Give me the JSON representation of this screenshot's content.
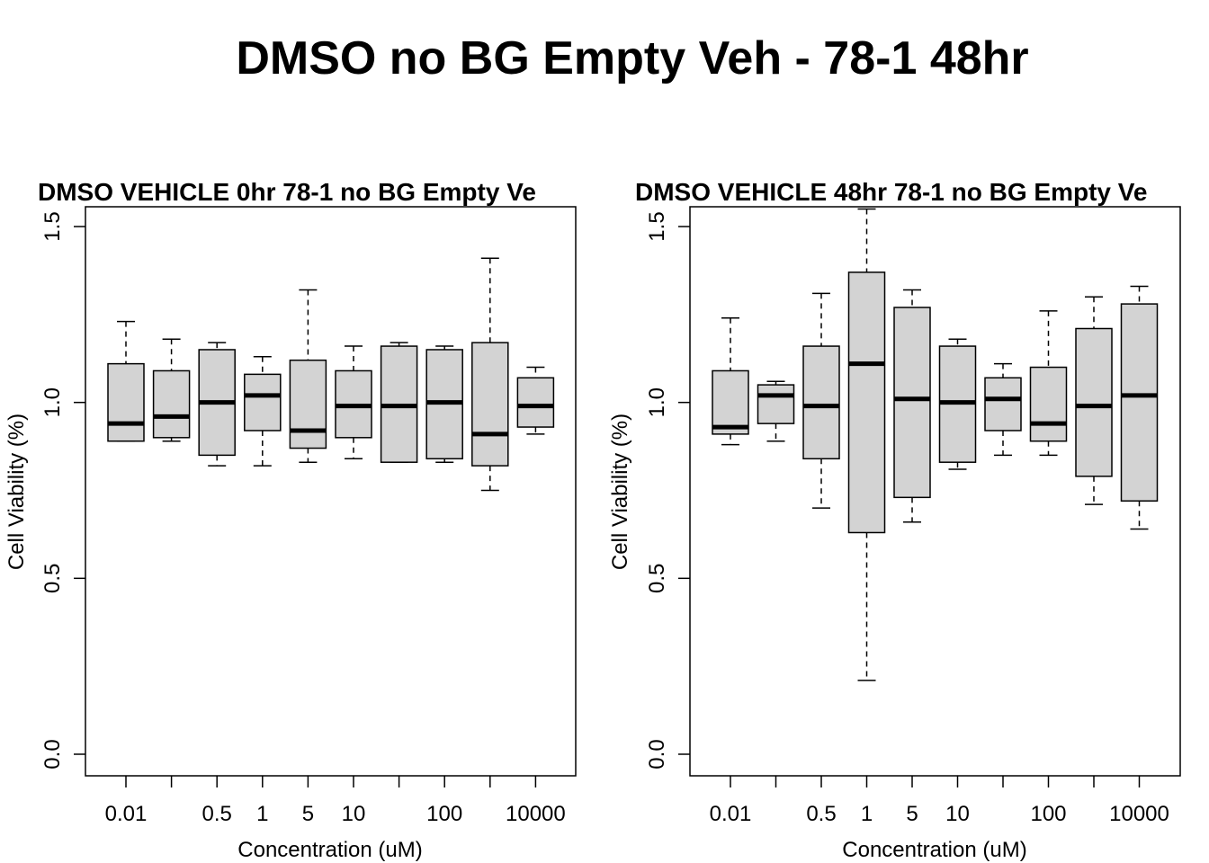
{
  "figure": {
    "title": "DMSO no BG Empty Veh - 78-1 48hr"
  },
  "chart_data": [
    {
      "type": "boxplot",
      "title": "DMSO VEHICLE 0hr 78-1 no BG Empty Ve",
      "xlabel": "Concentration (uM)",
      "ylabel": "Cell Viability (%)",
      "ylim": [
        0,
        1.5
      ],
      "yticks": [
        "0.0",
        "0.5",
        "1.0",
        "1.5"
      ],
      "categories": [
        "0.01",
        "",
        "0.5",
        "1",
        "5",
        "10",
        "",
        "100",
        "",
        "10000"
      ],
      "boxes": [
        {
          "whisker_low": 0.89,
          "q1": 0.89,
          "median": 0.94,
          "q3": 1.11,
          "whisker_high": 1.23
        },
        {
          "whisker_low": 0.89,
          "q1": 0.9,
          "median": 0.96,
          "q3": 1.09,
          "whisker_high": 1.18
        },
        {
          "whisker_low": 0.82,
          "q1": 0.85,
          "median": 1.0,
          "q3": 1.15,
          "whisker_high": 1.17
        },
        {
          "whisker_low": 0.82,
          "q1": 0.92,
          "median": 1.02,
          "q3": 1.08,
          "whisker_high": 1.13
        },
        {
          "whisker_low": 0.83,
          "q1": 0.87,
          "median": 0.92,
          "q3": 1.12,
          "whisker_high": 1.32
        },
        {
          "whisker_low": 0.84,
          "q1": 0.9,
          "median": 0.99,
          "q3": 1.09,
          "whisker_high": 1.16
        },
        {
          "whisker_low": 0.83,
          "q1": 0.83,
          "median": 0.99,
          "q3": 1.16,
          "whisker_high": 1.17
        },
        {
          "whisker_low": 0.83,
          "q1": 0.84,
          "median": 1.0,
          "q3": 1.15,
          "whisker_high": 1.16
        },
        {
          "whisker_low": 0.75,
          "q1": 0.82,
          "median": 0.91,
          "q3": 1.17,
          "whisker_high": 1.41
        },
        {
          "whisker_low": 0.91,
          "q1": 0.93,
          "median": 0.99,
          "q3": 1.07,
          "whisker_high": 1.1
        }
      ]
    },
    {
      "type": "boxplot",
      "title": "DMSO VEHICLE 48hr 78-1 no BG Empty Ve",
      "xlabel": "Concentration (uM)",
      "ylabel": "Cell Viability (%)",
      "ylim": [
        0,
        1.5
      ],
      "yticks": [
        "0.0",
        "0.5",
        "1.0",
        "1.5"
      ],
      "categories": [
        "0.01",
        "",
        "0.5",
        "1",
        "5",
        "10",
        "",
        "100",
        "",
        "10000"
      ],
      "boxes": [
        {
          "whisker_low": 0.88,
          "q1": 0.91,
          "median": 0.93,
          "q3": 1.09,
          "whisker_high": 1.24
        },
        {
          "whisker_low": 0.89,
          "q1": 0.94,
          "median": 1.02,
          "q3": 1.05,
          "whisker_high": 1.06
        },
        {
          "whisker_low": 0.7,
          "q1": 0.84,
          "median": 0.99,
          "q3": 1.16,
          "whisker_high": 1.31
        },
        {
          "whisker_low": 0.21,
          "q1": 0.63,
          "median": 1.11,
          "q3": 1.37,
          "whisker_high": 1.55
        },
        {
          "whisker_low": 0.66,
          "q1": 0.73,
          "median": 1.01,
          "q3": 1.27,
          "whisker_high": 1.32
        },
        {
          "whisker_low": 0.81,
          "q1": 0.83,
          "median": 1.0,
          "q3": 1.16,
          "whisker_high": 1.18
        },
        {
          "whisker_low": 0.85,
          "q1": 0.92,
          "median": 1.01,
          "q3": 1.07,
          "whisker_high": 1.11
        },
        {
          "whisker_low": 0.85,
          "q1": 0.89,
          "median": 0.94,
          "q3": 1.1,
          "whisker_high": 1.26
        },
        {
          "whisker_low": 0.71,
          "q1": 0.79,
          "median": 0.99,
          "q3": 1.21,
          "whisker_high": 1.3
        },
        {
          "whisker_low": 0.64,
          "q1": 0.72,
          "median": 1.02,
          "q3": 1.28,
          "whisker_high": 1.33
        }
      ]
    }
  ],
  "style": {
    "box_fill": "#d3d3d3",
    "stroke": "#000000",
    "background": "#ffffff"
  }
}
